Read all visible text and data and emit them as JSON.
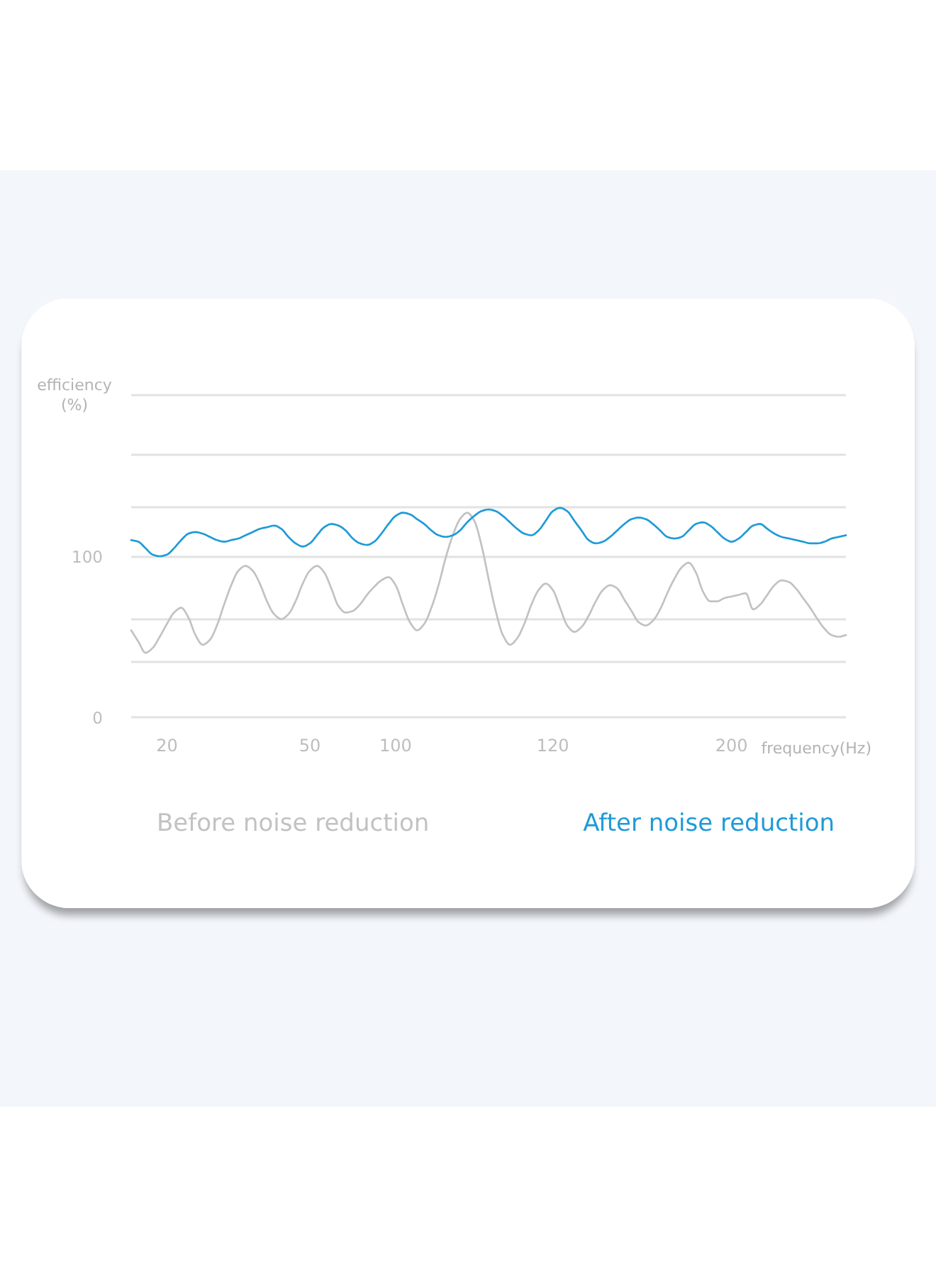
{
  "chart_data": {
    "type": "line",
    "xlabel": "frequency(Hz)",
    "ylabel": "efficiency (%)",
    "categories": [
      null,
      null,
      null,
      null,
      null,
      "20",
      null,
      null,
      null,
      null,
      null,
      null,
      null,
      null,
      null,
      null,
      null,
      null,
      null,
      null,
      null,
      null,
      null,
      null,
      null,
      "50",
      null,
      null,
      null,
      null,
      null,
      null,
      null,
      null,
      null,
      null,
      null,
      "100",
      null,
      null,
      null,
      null,
      null,
      null,
      null,
      null,
      null,
      null,
      null,
      null,
      null,
      null,
      null,
      null,
      null,
      null,
      null,
      null,
      null,
      "120",
      null,
      null,
      null,
      null,
      null,
      null,
      null,
      null,
      null,
      null,
      null,
      null,
      null,
      null,
      null,
      null,
      null,
      null,
      null,
      null,
      null,
      null,
      null,
      null,
      "200",
      null,
      null,
      null,
      null,
      null,
      null,
      null,
      null,
      null,
      null,
      null,
      null,
      null,
      null,
      null,
      null
    ],
    "ylim": [
      0,
      200
    ],
    "yticks": [
      0,
      {
        "value": 34,
        "label": null
      },
      {
        "value": 61,
        "label": null
      },
      100,
      {
        "value": 130,
        "label": null
      },
      {
        "value": 163,
        "label": null
      },
      {
        "value": 200,
        "label": null
      }
    ],
    "grid": "y",
    "legend": "bottom",
    "series": [
      {
        "name": "Before noise reduction",
        "color": "#c2c2c2",
        "values": [
          54,
          47,
          40,
          43,
          50,
          58,
          65,
          68,
          62,
          51,
          45,
          48,
          57,
          70,
          82,
          91,
          94,
          91,
          83,
          72,
          64,
          61,
          64,
          72,
          83,
          91,
          94,
          90,
          80,
          69,
          65,
          66,
          70,
          76,
          81,
          85,
          87,
          82,
          70,
          59,
          54,
          58,
          68,
          82,
          99,
          113,
          123,
          127,
          122,
          107,
          86,
          66,
          51,
          45,
          49,
          58,
          70,
          79,
          83,
          79,
          68,
          57,
          53,
          56,
          63,
          72,
          79,
          82,
          80,
          73,
          66,
          59,
          57,
          60,
          67,
          77,
          86,
          93,
          96,
          90,
          78,
          72,
          72,
          74,
          75,
          76,
          77,
          67,
          70,
          76,
          82,
          85,
          84,
          80,
          74,
          68,
          61,
          55,
          51,
          50,
          51
        ]
      },
      {
        "name": "After noise reduction",
        "color": "#1e9bd7",
        "values": [
          110,
          109,
          105,
          101,
          100,
          101,
          105,
          110,
          114,
          115,
          114,
          112,
          110,
          109,
          110,
          111,
          113,
          115,
          117,
          118,
          119,
          117,
          112,
          108,
          106,
          108,
          113,
          118,
          120,
          119,
          116,
          111,
          108,
          107,
          109,
          114,
          120,
          125,
          127,
          126,
          123,
          120,
          116,
          113,
          112,
          113,
          116,
          121,
          125,
          128,
          129,
          128,
          125,
          121,
          117,
          114,
          113,
          116,
          122,
          128,
          130,
          128,
          122,
          116,
          110,
          108,
          109,
          112,
          116,
          120,
          123,
          124,
          123,
          120,
          116,
          112,
          111,
          112,
          116,
          120,
          121,
          119,
          115,
          111,
          109,
          111,
          115,
          119,
          120,
          117,
          114,
          112,
          111,
          110,
          109,
          108,
          108,
          109,
          111,
          112,
          113
        ]
      }
    ]
  }
}
